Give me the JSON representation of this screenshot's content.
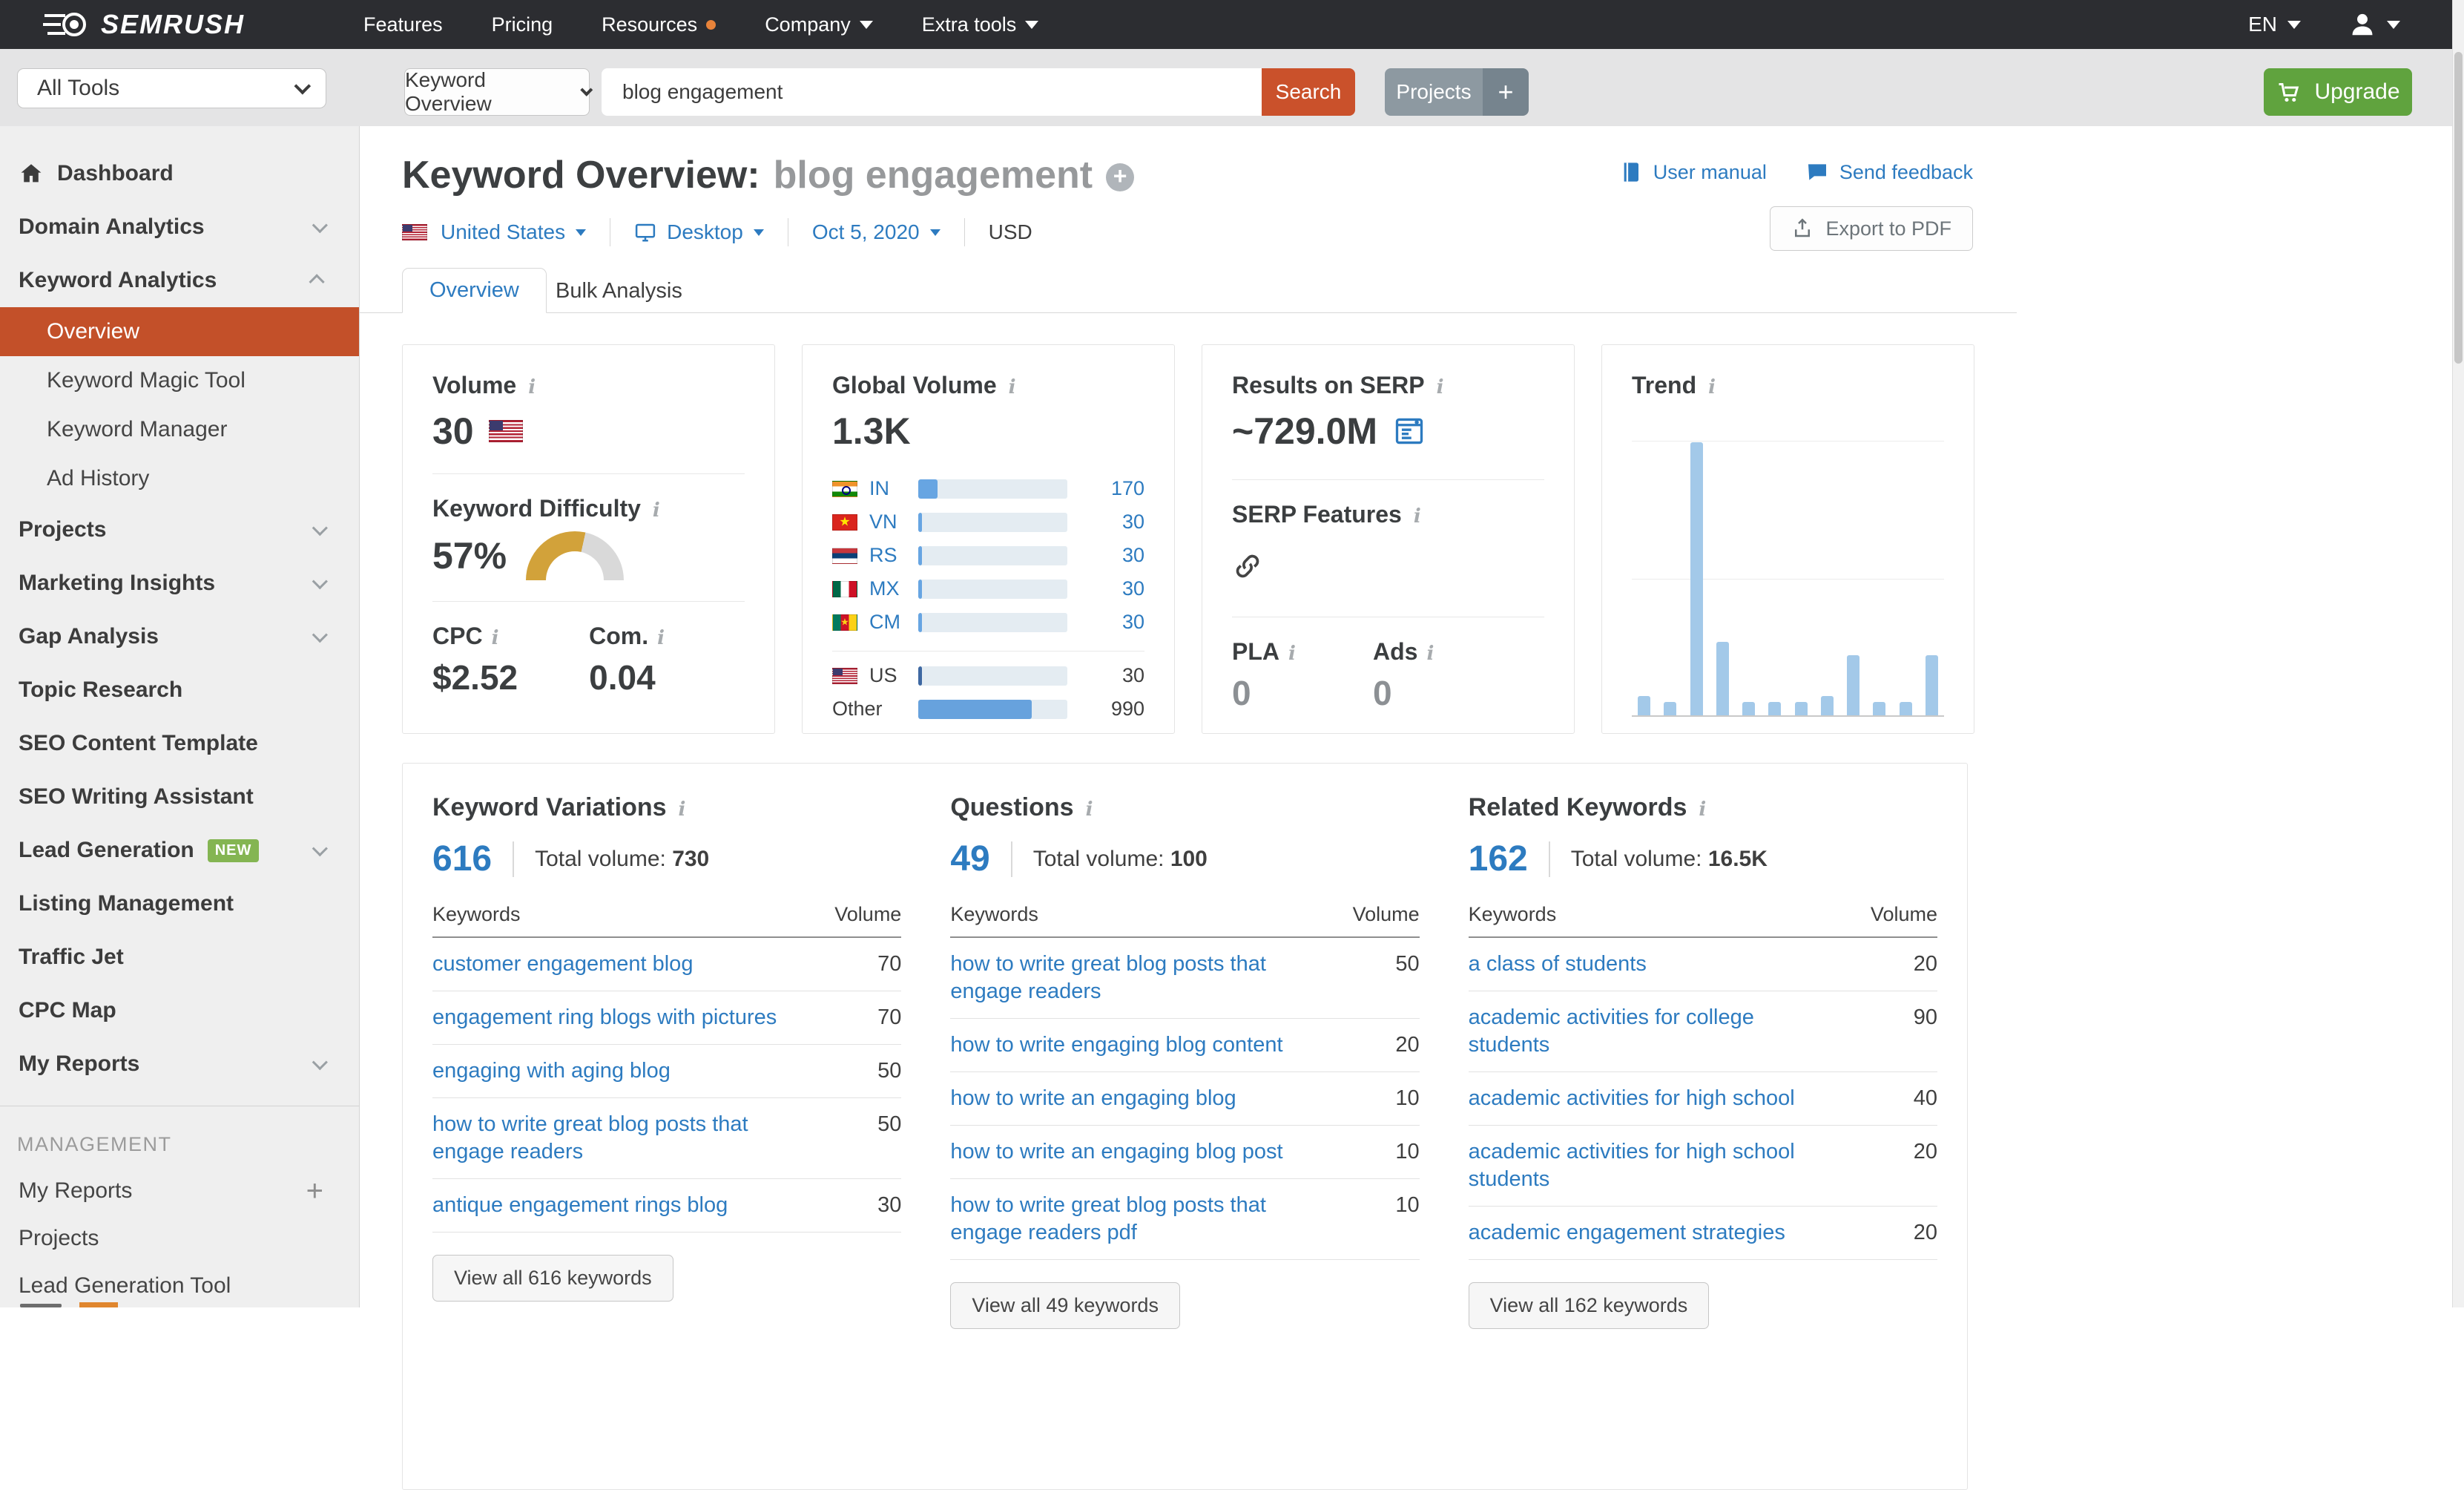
{
  "nav": {
    "brand": "SEMRUSH",
    "items": [
      {
        "label": "Features"
      },
      {
        "label": "Pricing"
      },
      {
        "label": "Resources",
        "dot": true
      },
      {
        "label": "Company",
        "chevron": true
      },
      {
        "label": "Extra tools",
        "chevron": true
      }
    ],
    "language": "EN"
  },
  "search": {
    "scope": "Keyword Overview",
    "query": "blog engagement",
    "button": "Search",
    "projects_label": "Projects",
    "add_label": "+",
    "upgrade_label": "Upgrade"
  },
  "sidebar": {
    "all_tools": "All Tools",
    "items": [
      {
        "label": "Dashboard",
        "icon": "home"
      },
      {
        "label": "Domain Analytics",
        "chevron": "down"
      },
      {
        "label": "Keyword Analytics",
        "chevron": "up"
      },
      {
        "label": "Overview",
        "sub": true,
        "active": true
      },
      {
        "label": "Keyword Magic Tool",
        "sub": true
      },
      {
        "label": "Keyword Manager",
        "sub": true
      },
      {
        "label": "Ad History",
        "sub": true
      },
      {
        "label": "Projects",
        "chevron": "down"
      },
      {
        "label": "Marketing Insights",
        "chevron": "down"
      },
      {
        "label": "Gap Analysis",
        "chevron": "down"
      },
      {
        "label": "Topic Research"
      },
      {
        "label": "SEO Content Template"
      },
      {
        "label": "SEO Writing Assistant"
      },
      {
        "label": "Lead Generation",
        "chevron": "down",
        "badge": "NEW"
      },
      {
        "label": "Listing Management"
      },
      {
        "label": "Traffic Jet"
      },
      {
        "label": "CPC Map"
      },
      {
        "label": "My Reports",
        "chevron": "down"
      },
      {
        "divider": true
      },
      {
        "section": "MANAGEMENT"
      },
      {
        "label": "My Reports",
        "plain": true,
        "plus": true
      },
      {
        "label": "Projects",
        "plain": true
      },
      {
        "label": "Lead Generation Tool",
        "plain": true
      }
    ]
  },
  "header": {
    "title_prefix": "Keyword Overview:",
    "title_keyword": "blog engagement",
    "user_manual": "User manual",
    "send_feedback": "Send feedback",
    "export_pdf": "Export to PDF"
  },
  "filters": {
    "country": "United States",
    "device": "Desktop",
    "date": "Oct 5, 2020",
    "currency": "USD"
  },
  "tabs": [
    {
      "label": "Overview",
      "active": true
    },
    {
      "label": "Bulk Analysis",
      "active": false
    }
  ],
  "cards": {
    "volume": {
      "title": "Volume",
      "value": "30",
      "kd_title": "Keyword Difficulty",
      "kd_value": "57%",
      "kd_percent": 57,
      "cpc_label": "CPC",
      "cpc_value": "$2.52",
      "com_label": "Com.",
      "com_value": "0.04"
    },
    "global_volume": {
      "title": "Global Volume",
      "value": "1.3K",
      "total": 1300,
      "countries": [
        {
          "code": "IN",
          "volume": 170
        },
        {
          "code": "VN",
          "volume": 30
        },
        {
          "code": "RS",
          "volume": 30
        },
        {
          "code": "MX",
          "volume": 30
        },
        {
          "code": "CM",
          "volume": 30
        }
      ],
      "us": {
        "code": "US",
        "volume": 30
      },
      "other": {
        "label": "Other",
        "volume": 990
      }
    },
    "serp": {
      "title": "Results on SERP",
      "value": "~729.0M",
      "features_title": "SERP Features",
      "pla_label": "PLA",
      "pla_value": "0",
      "ads_label": "Ads",
      "ads_value": "0"
    },
    "trend": {
      "title": "Trend"
    }
  },
  "chart_data": [
    {
      "type": "bar",
      "title": "Trend",
      "x_labels": [],
      "values": [
        7,
        5,
        100,
        27,
        5,
        5,
        5,
        7,
        22,
        5,
        5,
        22
      ],
      "ylim": [
        0,
        100
      ],
      "note": "relative keyword search trend, 12 periods, no axis tick labels shown; gridlines at 50 and 100"
    },
    {
      "type": "bar",
      "title": "Global Volume by country",
      "categories": [
        "IN",
        "VN",
        "RS",
        "MX",
        "CM",
        "US",
        "Other"
      ],
      "values": [
        170,
        30,
        30,
        30,
        30,
        30,
        990
      ]
    }
  ],
  "sections": {
    "variations": {
      "title": "Keyword Variations",
      "count": "616",
      "total_label": "Total volume:",
      "total_value": "730",
      "col_keywords": "Keywords",
      "col_volume": "Volume",
      "rows": [
        {
          "k": "customer engagement blog",
          "v": "70"
        },
        {
          "k": "engagement ring blogs with pictures",
          "v": "70"
        },
        {
          "k": "engaging with aging blog",
          "v": "50"
        },
        {
          "k": "how to write great blog posts that engage readers",
          "v": "50"
        },
        {
          "k": "antique engagement rings blog",
          "v": "30"
        }
      ],
      "view_all": "View all 616 keywords"
    },
    "questions": {
      "title": "Questions",
      "count": "49",
      "total_label": "Total volume:",
      "total_value": "100",
      "col_keywords": "Keywords",
      "col_volume": "Volume",
      "rows": [
        {
          "k": "how to write great blog posts that engage readers",
          "v": "50"
        },
        {
          "k": "how to write engaging blog content",
          "v": "20"
        },
        {
          "k": "how to write an engaging blog",
          "v": "10"
        },
        {
          "k": "how to write an engaging blog post",
          "v": "10"
        },
        {
          "k": "how to write great blog posts that engage readers pdf",
          "v": "10"
        }
      ],
      "view_all": "View all 49 keywords"
    },
    "related": {
      "title": "Related Keywords",
      "count": "162",
      "total_label": "Total volume:",
      "total_value": "16.5K",
      "col_keywords": "Keywords",
      "col_volume": "Volume",
      "rows": [
        {
          "k": "a class of students",
          "v": "20"
        },
        {
          "k": "academic activities for college students",
          "v": "90"
        },
        {
          "k": "academic activities for high school",
          "v": "40"
        },
        {
          "k": "academic activities for high school students",
          "v": "20"
        },
        {
          "k": "academic engagement strategies",
          "v": "20"
        }
      ],
      "view_all": "View all 162 keywords"
    }
  }
}
